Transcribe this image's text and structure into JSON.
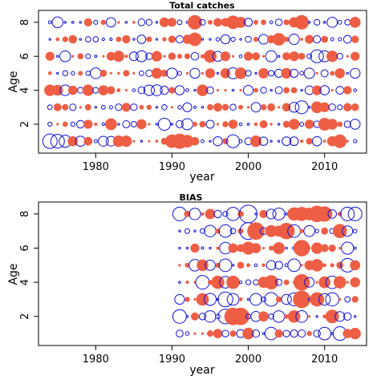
{
  "figure": {
    "background": "#ffffff",
    "colors": {
      "positive": "#ee5e44",
      "negative": "#1010d6",
      "axis": "#000000"
    }
  },
  "chart_data": [
    {
      "type": "scatter",
      "subtype": "bubble-residuals",
      "title": "Total catches",
      "xlabel": "year",
      "ylabel": "Age",
      "xlim": [
        1972.5,
        2015.5
      ],
      "ylim": [
        0.3,
        8.7
      ],
      "xticks": [
        1980,
        1990,
        2000,
        2010
      ],
      "yticks": [
        2,
        4,
        6,
        8
      ],
      "year_range": [
        1974,
        2014
      ],
      "ages": [
        1,
        2,
        3,
        4,
        5,
        6,
        7,
        8
      ],
      "seed": 7,
      "max_radius": 9,
      "emphasis": [
        {
          "age": 1,
          "year": 1974,
          "value": -1.0
        },
        {
          "age": 1,
          "year": 1975,
          "value": -0.9
        },
        {
          "age": 1,
          "year": 1976,
          "value": -0.7
        },
        {
          "age": 1,
          "year": 1991,
          "value": 1.0
        },
        {
          "age": 1,
          "year": 1990,
          "value": 0.8
        },
        {
          "age": 1,
          "year": 1992,
          "value": 0.7
        },
        {
          "age": 1,
          "year": 1998,
          "value": -0.8
        },
        {
          "age": 1,
          "year": 2012,
          "value": 0.8
        },
        {
          "age": 8,
          "year": 1993,
          "value": 0.9
        },
        {
          "age": 8,
          "year": 2007,
          "value": 0.9
        },
        {
          "age": 8,
          "year": 1998,
          "value": 0.8
        },
        {
          "age": 7,
          "year": 1993,
          "value": 0.8
        },
        {
          "age": 7,
          "year": 2004,
          "value": 0.7
        },
        {
          "age": 6,
          "year": 2009,
          "value": -0.8
        },
        {
          "age": 6,
          "year": 1995,
          "value": 0.7
        },
        {
          "age": 3,
          "year": 2007,
          "value": -0.8
        },
        {
          "age": 2,
          "year": 1989,
          "value": -0.7
        },
        {
          "age": 2,
          "year": 2010,
          "value": 0.7
        }
      ]
    },
    {
      "type": "scatter",
      "subtype": "bubble-residuals",
      "title": "BIAS",
      "xlabel": "year",
      "ylabel": "Age",
      "xlim": [
        1972.5,
        2015.5
      ],
      "ylim": [
        0.3,
        8.7
      ],
      "xticks": [
        1980,
        1990,
        2000,
        2010
      ],
      "yticks": [
        2,
        4,
        6,
        8
      ],
      "year_range": [
        1991,
        2014
      ],
      "ages": [
        1,
        2,
        3,
        4,
        5,
        6,
        7,
        8
      ],
      "seed": 23,
      "max_radius": 11,
      "emphasis": [
        {
          "age": 8,
          "year": 2000,
          "value": -1.0
        },
        {
          "age": 7,
          "year": 2000,
          "value": -0.9
        },
        {
          "age": 8,
          "year": 1991,
          "value": -0.6
        },
        {
          "age": 8,
          "year": 2013,
          "value": -0.6
        },
        {
          "age": 8,
          "year": 2014,
          "value": -0.6
        },
        {
          "age": 8,
          "year": 2009,
          "value": 0.8
        },
        {
          "age": 8,
          "year": 2010,
          "value": 0.7
        },
        {
          "age": 7,
          "year": 2001,
          "value": 0.9
        },
        {
          "age": 7,
          "year": 2005,
          "value": 0.8
        },
        {
          "age": 3,
          "year": 2007,
          "value": 0.9
        },
        {
          "age": 3,
          "year": 1997,
          "value": -0.7
        },
        {
          "age": 3,
          "year": 2003,
          "value": -0.6
        },
        {
          "age": 2,
          "year": 1998,
          "value": 0.9
        },
        {
          "age": 2,
          "year": 1999,
          "value": 0.9
        },
        {
          "age": 2,
          "year": 1997,
          "value": -0.7
        },
        {
          "age": 2,
          "year": 1991,
          "value": -0.6
        },
        {
          "age": 4,
          "year": 1994,
          "value": -0.6
        },
        {
          "age": 4,
          "year": 2007,
          "value": 0.8
        },
        {
          "age": 6,
          "year": 2007,
          "value": 0.8
        },
        {
          "age": 1,
          "year": 2012,
          "value": -0.6
        },
        {
          "age": 1,
          "year": 2003,
          "value": -0.5
        }
      ]
    }
  ]
}
